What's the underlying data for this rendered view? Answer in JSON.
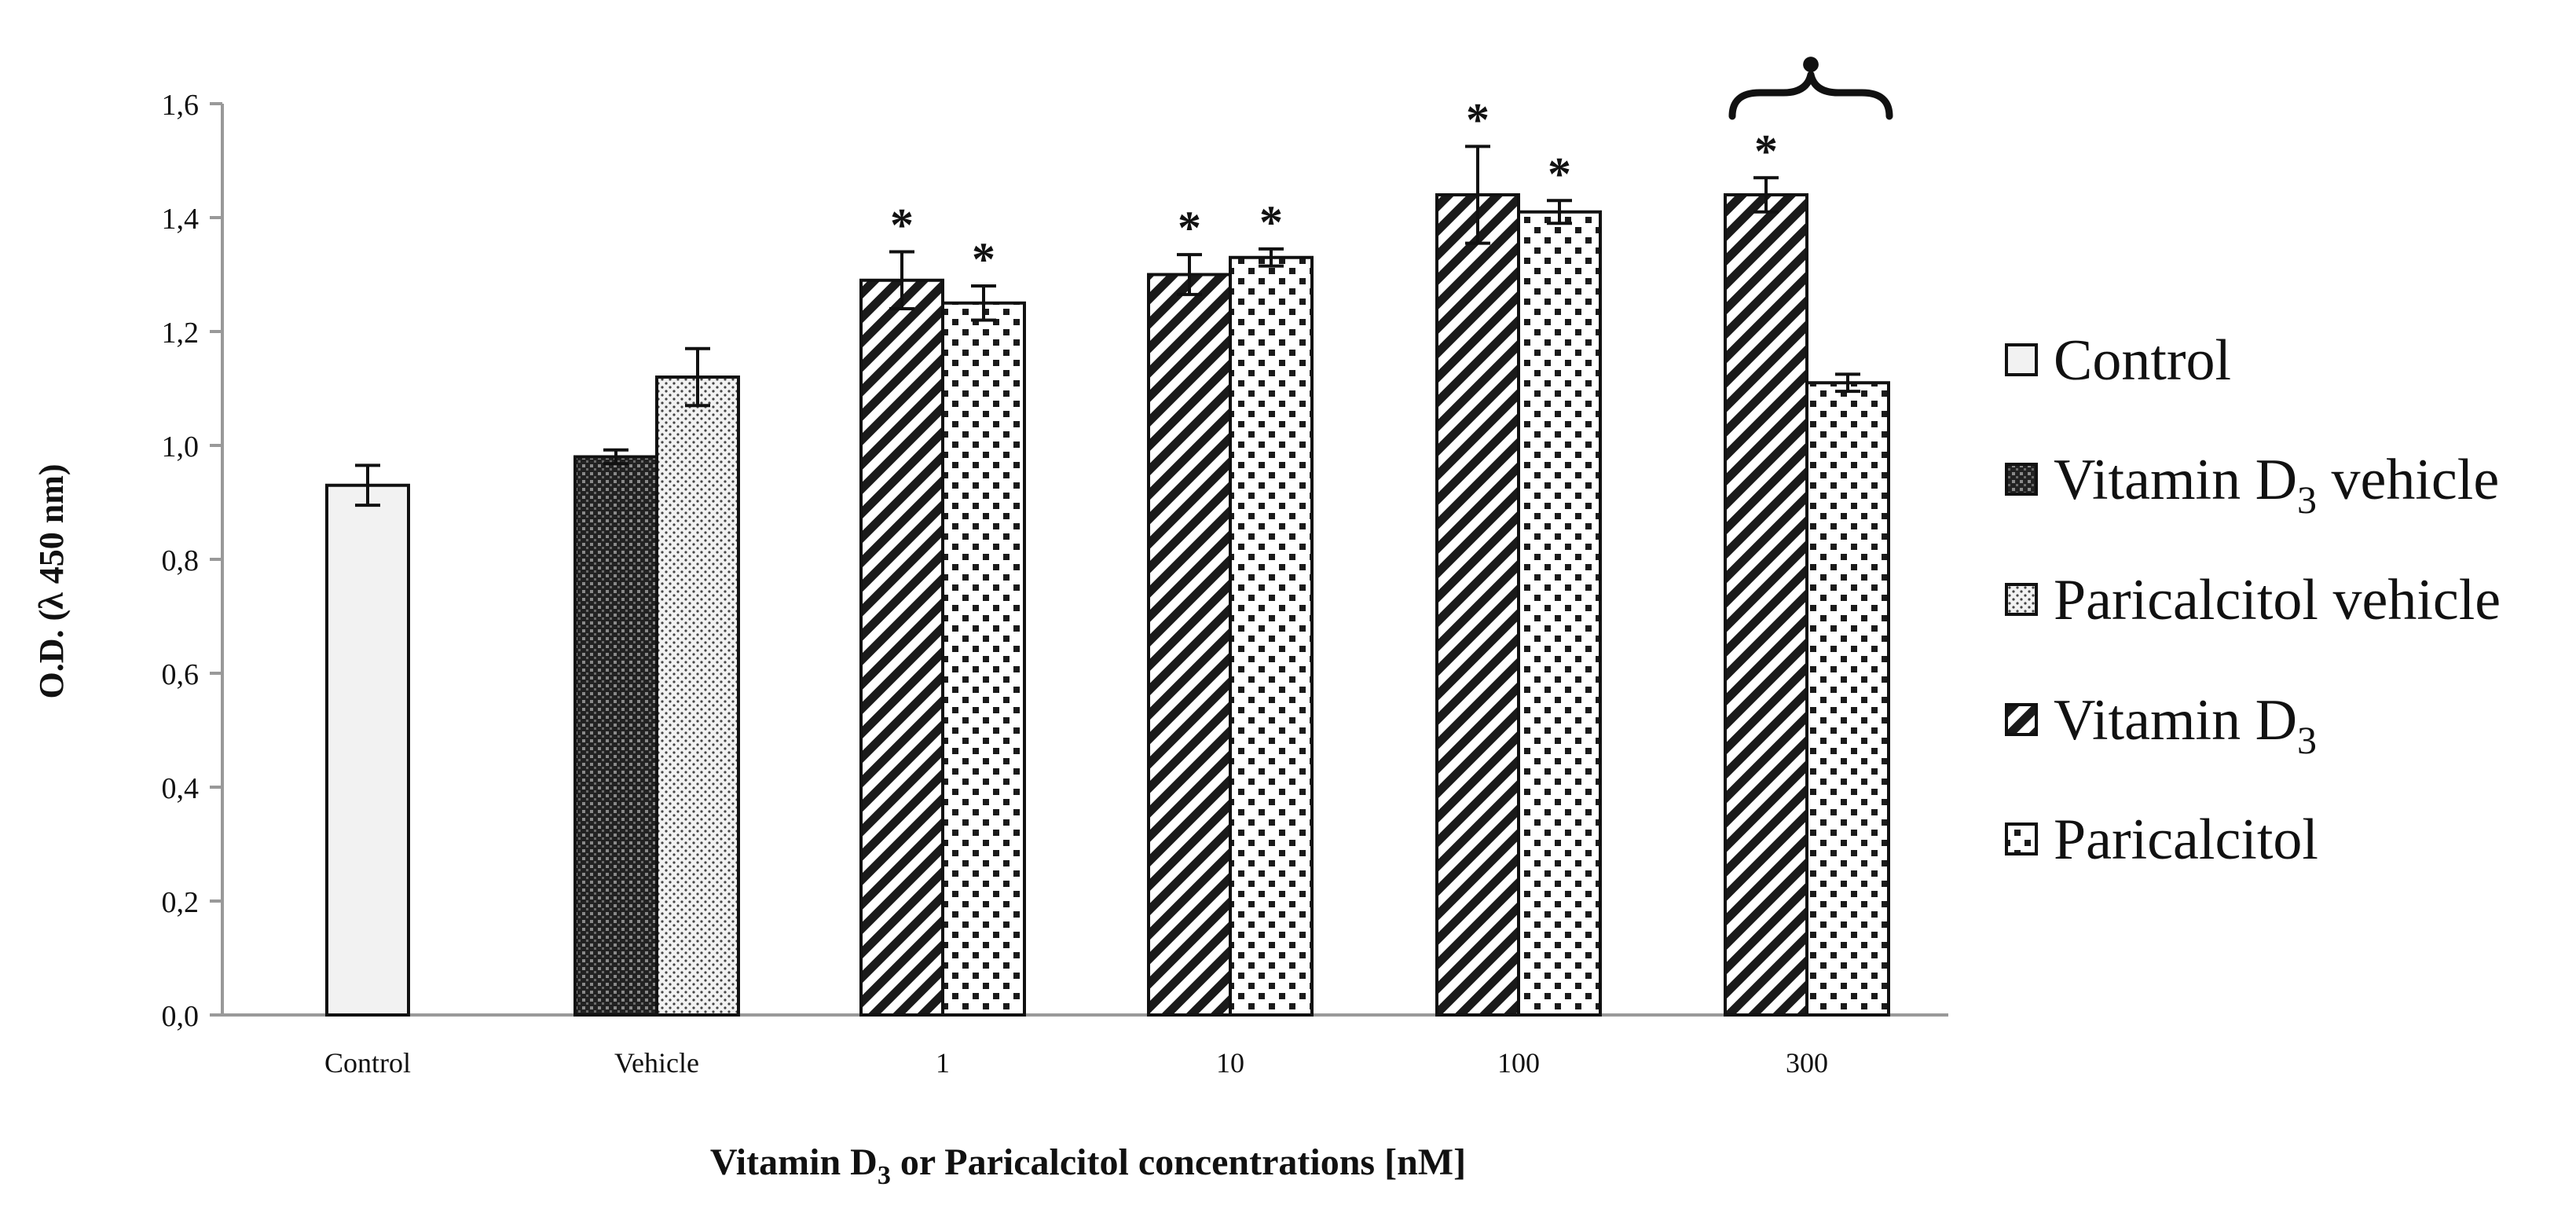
{
  "chart_data": {
    "type": "bar",
    "title": "",
    "ylabel": "O.D. (λ 450 nm)",
    "xlabel_main": "Vitamin D",
    "xlabel_sub": "3",
    "xlabel_rest": " or Paricalcitol concentrations [nM]",
    "ylim": [
      0,
      1.6
    ],
    "yticks": [
      "0,0",
      "0,2",
      "0,4",
      "0,6",
      "0,8",
      "1,0",
      "1,2",
      "1,4",
      "1,6"
    ],
    "categories": [
      "Control",
      "Vehicle",
      "1",
      "10",
      "100",
      "300"
    ],
    "bars": [
      {
        "category": "Control",
        "series": "Control",
        "value": 0.93,
        "error": 0.035,
        "star": false
      },
      {
        "category": "Vehicle",
        "series": "Vitamin D3 vehicle",
        "value": 0.98,
        "error": 0.012,
        "star": false
      },
      {
        "category": "Vehicle",
        "series": "Paricalcitol vehicle",
        "value": 1.12,
        "error": 0.05,
        "star": false
      },
      {
        "category": "1",
        "series": "Vitamin D3",
        "value": 1.29,
        "error": 0.05,
        "star": true
      },
      {
        "category": "1",
        "series": "Paricalcitol",
        "value": 1.25,
        "error": 0.03,
        "star": true
      },
      {
        "category": "10",
        "series": "Vitamin D3",
        "value": 1.3,
        "error": 0.035,
        "star": true
      },
      {
        "category": "10",
        "series": "Paricalcitol",
        "value": 1.33,
        "error": 0.015,
        "star": true
      },
      {
        "category": "100",
        "series": "Vitamin D3",
        "value": 1.44,
        "error": 0.085,
        "star": true
      },
      {
        "category": "100",
        "series": "Paricalcitol",
        "value": 1.41,
        "error": 0.02,
        "star": true
      },
      {
        "category": "300",
        "series": "Vitamin D3",
        "value": 1.44,
        "error": 0.03,
        "star": true
      },
      {
        "category": "300",
        "series": "Paricalcitol",
        "value": 1.11,
        "error": 0.015,
        "star": false
      }
    ],
    "star_symbol": "*",
    "bracket_symbol": "●",
    "legend": [
      {
        "pattern": "control",
        "label": "Control",
        "sub": "",
        "suffix": ""
      },
      {
        "pattern": "vitd3veh",
        "label": "Vitamin D",
        "sub": "3",
        "suffix": " vehicle"
      },
      {
        "pattern": "parveh",
        "label": "Paricalcitol vehicle",
        "sub": "",
        "suffix": ""
      },
      {
        "pattern": "vitd3",
        "label": "Vitamin D",
        "sub": "3",
        "suffix": ""
      },
      {
        "pattern": "par",
        "label": "Paricalcitol",
        "sub": "",
        "suffix": ""
      }
    ]
  }
}
